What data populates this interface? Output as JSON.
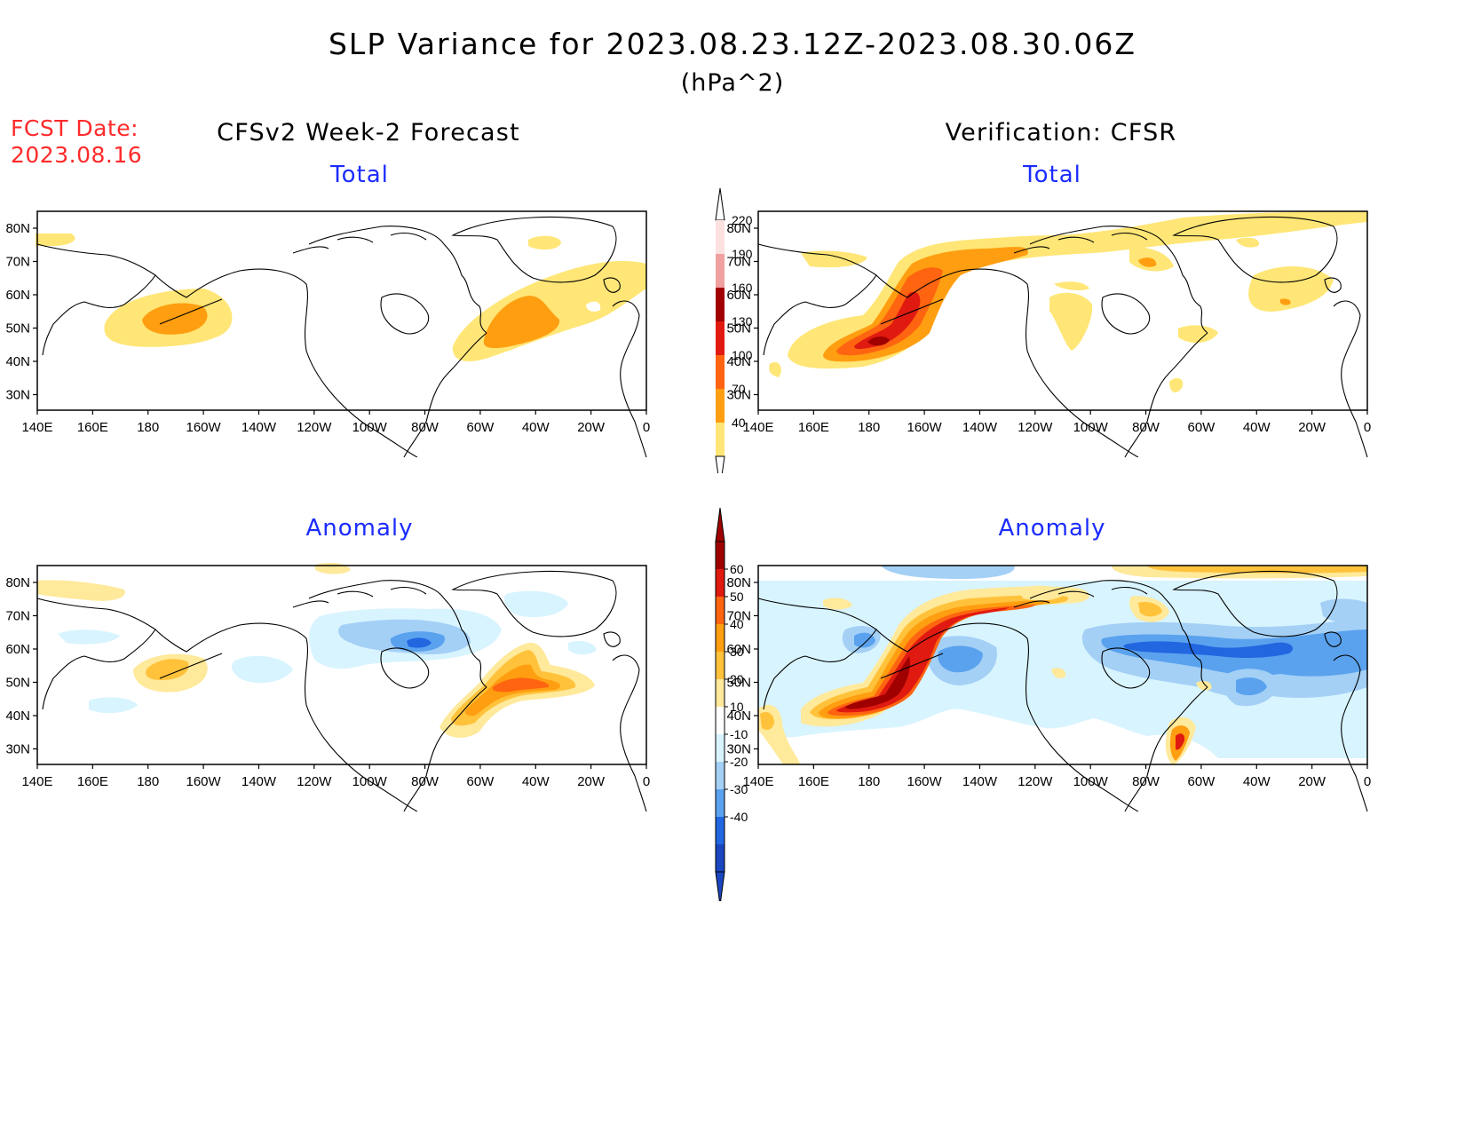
{
  "header": {
    "title": "SLP Variance for 2023.08.23.12Z-2023.08.30.06Z",
    "units": "(hPa^2)",
    "fcst_label": "FCST Date:",
    "fcst_date": "2023.08.16",
    "left_column": "CFSv2 Week-2 Forecast",
    "right_column": "Verification: CFSR"
  },
  "panels": {
    "forecast_total": {
      "title": "Total"
    },
    "verif_total": {
      "title": "Total"
    },
    "forecast_anomaly": {
      "title": "Anomaly"
    },
    "verif_anomaly": {
      "title": "Anomaly"
    }
  },
  "axes": {
    "lat_labels": [
      "80N",
      "70N",
      "60N",
      "50N",
      "40N",
      "30N"
    ],
    "lon_labels": [
      "140E",
      "160E",
      "180",
      "160W",
      "140W",
      "120W",
      "100W",
      "80W",
      "60W",
      "40W",
      "20W",
      "0"
    ]
  },
  "colorbars": {
    "total": {
      "levels": [
        "220",
        "190",
        "160",
        "130",
        "100",
        "70",
        "40"
      ],
      "colors": [
        "#fde0e0",
        "#f0a0a0",
        "#a00000",
        "#e01a10",
        "#ff6410",
        "#ff9e10",
        "#ffe676"
      ]
    },
    "anomaly": {
      "levels": [
        "60",
        "50",
        "40",
        "30",
        "20",
        "10",
        "-10",
        "-20",
        "-30",
        "-40"
      ],
      "colors": [
        "#a00000",
        "#e01a10",
        "#ff6410",
        "#ff9e10",
        "#ffc23a",
        "#ffe99a",
        "#ffffff",
        "#d8f4ff",
        "#a4d0f6",
        "#5aa2ee",
        "#2266e0",
        "#1a46c0"
      ]
    }
  },
  "colors": {
    "fcst_text": "#ff2a2a",
    "panel_title": "#1b2cff",
    "coast": "#000000"
  }
}
